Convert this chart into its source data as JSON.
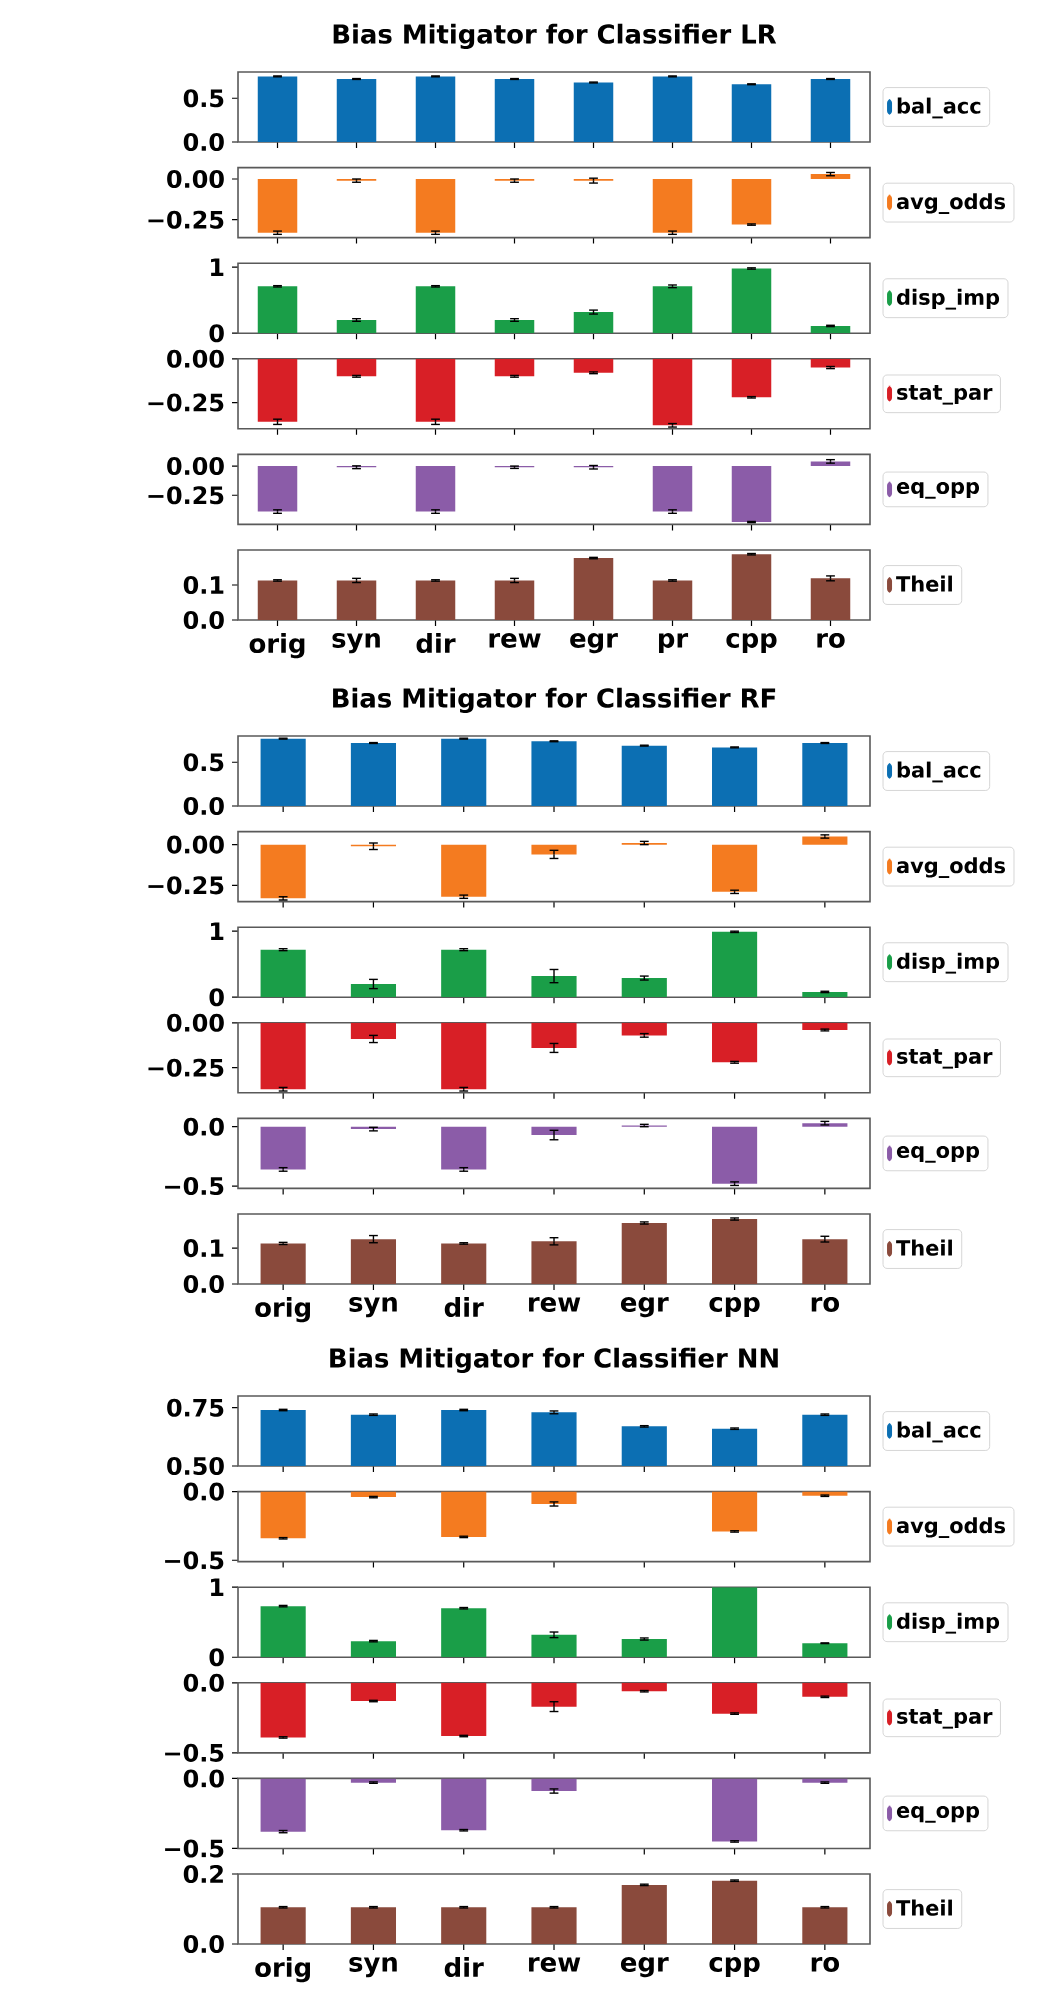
{
  "chart_data": [
    {
      "type": "bar",
      "title": "Bias Mitigator for Classifier LR",
      "categories": [
        null,
        null,
        null,
        null,
        null,
        null,
        null,
        null
      ],
      "series": [
        {
          "name": "bal_acc",
          "color": "#0c6fb3",
          "values": [
            0.75,
            0.72,
            0.75,
            0.72,
            0.68,
            0.75,
            0.66,
            0.72
          ],
          "errors": [
            0.005,
            0.005,
            0.005,
            0.005,
            0.005,
            0.005,
            0.005,
            0.005
          ]
        }
      ],
      "ylim": [
        0,
        0.8
      ],
      "yticks": [
        {
          "value": 0,
          "label": "0.0"
        },
        0.5
      ],
      "legend": "right",
      "tick_labels": "y"
    },
    {
      "type": "bar",
      "categories": [
        null,
        null,
        null,
        null,
        null,
        null,
        null,
        null
      ],
      "series": [
        {
          "name": "avg_odds",
          "color": "#f47b20",
          "values": [
            -0.33,
            -0.01,
            -0.33,
            -0.01,
            -0.01,
            -0.33,
            -0.28,
            0.03
          ],
          "errors": [
            0.01,
            0.01,
            0.01,
            0.01,
            0.015,
            0.01,
            0.004,
            0.01
          ]
        }
      ],
      "ylim": [
        -0.36,
        0.07
      ],
      "yticks": [
        {
          "value": -0.25,
          "label": "−0.25"
        },
        {
          "value": 0,
          "label": "0.00"
        }
      ],
      "legend": "right",
      "tick_labels": "y"
    },
    {
      "type": "bar",
      "categories": [
        null,
        null,
        null,
        null,
        null,
        null,
        null,
        null
      ],
      "series": [
        {
          "name": "disp_imp",
          "color": "#1a9e48",
          "values": [
            0.71,
            0.2,
            0.71,
            0.2,
            0.32,
            0.71,
            0.98,
            0.11
          ],
          "errors": [
            0.01,
            0.02,
            0.01,
            0.02,
            0.03,
            0.02,
            0.01,
            0.01
          ]
        }
      ],
      "ylim": [
        0,
        1.06
      ],
      "yticks": [
        0,
        1
      ],
      "legend": "right",
      "tick_labels": "y"
    },
    {
      "type": "bar",
      "categories": [
        null,
        null,
        null,
        null,
        null,
        null,
        null,
        null
      ],
      "series": [
        {
          "name": "stat_par",
          "color": "#d81f26",
          "values": [
            -0.36,
            -0.1,
            -0.36,
            -0.1,
            -0.08,
            -0.38,
            -0.22,
            -0.05
          ],
          "errors": [
            0.015,
            0.005,
            0.015,
            0.005,
            0.005,
            0.01,
            0.004,
            0.006
          ]
        }
      ],
      "ylim": [
        -0.4,
        0
      ],
      "yticks": [
        {
          "value": -0.25,
          "label": "−0.25"
        },
        {
          "value": 0,
          "label": "0.00"
        }
      ],
      "legend": "right",
      "tick_labels": "y"
    },
    {
      "type": "bar",
      "categories": [
        null,
        null,
        null,
        null,
        null,
        null,
        null,
        null
      ],
      "series": [
        {
          "name": "eq_opp",
          "color": "#8b5ca8",
          "values": [
            -0.39,
            -0.01,
            -0.39,
            -0.01,
            -0.01,
            -0.39,
            -0.48,
            0.04
          ],
          "errors": [
            0.015,
            0.012,
            0.015,
            0.01,
            0.015,
            0.015,
            0.005,
            0.015
          ]
        }
      ],
      "ylim": [
        -0.5,
        0.1
      ],
      "yticks": [
        {
          "value": -0.25,
          "label": "−0.25"
        },
        {
          "value": 0,
          "label": "0.00"
        }
      ],
      "legend": "right",
      "tick_labels": "y"
    },
    {
      "type": "bar",
      "categories": [
        "orig",
        "syn",
        "dir",
        "rew",
        "egr",
        "pr",
        "cpp",
        "ro"
      ],
      "series": [
        {
          "name": "Theil",
          "color": "#8a4a3c",
          "values": [
            0.113,
            0.113,
            0.113,
            0.113,
            0.177,
            0.113,
            0.188,
            0.119
          ],
          "errors": [
            0.002,
            0.006,
            0.002,
            0.006,
            0.002,
            0.002,
            0.002,
            0.007
          ]
        }
      ],
      "ylim": [
        0,
        0.2
      ],
      "yticks": [
        {
          "value": 0,
          "label": "0.0"
        },
        0.1
      ],
      "legend": "right"
    },
    {
      "type": "bar",
      "title": "Bias Mitigator for Classifier RF",
      "categories": [
        null,
        null,
        null,
        null,
        null,
        null,
        null
      ],
      "series": [
        {
          "name": "bal_acc",
          "color": "#0c6fb3",
          "values": [
            0.77,
            0.72,
            0.77,
            0.74,
            0.69,
            0.67,
            0.72
          ],
          "errors": [
            0.005,
            0.005,
            0.005,
            0.005,
            0.005,
            0.005,
            0.005
          ]
        }
      ],
      "ylim": [
        0,
        0.8
      ],
      "yticks": [
        {
          "value": 0,
          "label": "0.0"
        },
        0.5
      ],
      "legend": "right",
      "tick_labels": "y"
    },
    {
      "type": "bar",
      "categories": [
        null,
        null,
        null,
        null,
        null,
        null,
        null
      ],
      "series": [
        {
          "name": "avg_odds",
          "color": "#f47b20",
          "values": [
            -0.33,
            -0.01,
            -0.32,
            -0.06,
            0.01,
            -0.29,
            0.05
          ],
          "errors": [
            0.01,
            0.02,
            0.01,
            0.025,
            0.01,
            0.01,
            0.01
          ]
        }
      ],
      "ylim": [
        -0.35,
        0.08
      ],
      "yticks": [
        {
          "value": -0.25,
          "label": "−0.25"
        },
        {
          "value": 0,
          "label": "0.00"
        }
      ],
      "legend": "right",
      "tick_labels": "y"
    },
    {
      "type": "bar",
      "categories": [
        null,
        null,
        null,
        null,
        null,
        null,
        null
      ],
      "series": [
        {
          "name": "disp_imp",
          "color": "#1a9e48",
          "values": [
            0.72,
            0.2,
            0.72,
            0.32,
            0.29,
            0.99,
            0.08
          ],
          "errors": [
            0.015,
            0.07,
            0.015,
            0.1,
            0.03,
            0.01,
            0.01
          ]
        }
      ],
      "ylim": [
        0,
        1.06
      ],
      "yticks": [
        0,
        1
      ],
      "legend": "right",
      "tick_labels": "y"
    },
    {
      "type": "bar",
      "categories": [
        null,
        null,
        null,
        null,
        null,
        null,
        null
      ],
      "series": [
        {
          "name": "stat_par",
          "color": "#d81f26",
          "values": [
            -0.37,
            -0.09,
            -0.37,
            -0.14,
            -0.07,
            -0.22,
            -0.04
          ],
          "errors": [
            0.01,
            0.02,
            0.01,
            0.025,
            0.01,
            0.005,
            0.005
          ]
        }
      ],
      "ylim": [
        -0.39,
        0
      ],
      "yticks": [
        {
          "value": -0.25,
          "label": "−0.25"
        },
        {
          "value": 0,
          "label": "0.00"
        }
      ],
      "legend": "right",
      "tick_labels": "y"
    },
    {
      "type": "bar",
      "categories": [
        null,
        null,
        null,
        null,
        null,
        null,
        null
      ],
      "series": [
        {
          "name": "eq_opp",
          "color": "#8b5ca8",
          "values": [
            -0.36,
            -0.02,
            -0.36,
            -0.07,
            0.01,
            -0.48,
            0.03
          ],
          "errors": [
            0.015,
            0.015,
            0.015,
            0.04,
            0.01,
            0.015,
            0.015
          ]
        }
      ],
      "ylim": [
        -0.52,
        0.07
      ],
      "yticks": [
        {
          "value": -0.5,
          "label": "−0.5"
        },
        {
          "value": 0,
          "label": "0.0"
        }
      ],
      "legend": "right",
      "tick_labels": "y"
    },
    {
      "type": "bar",
      "categories": [
        "orig",
        "syn",
        "dir",
        "rew",
        "egr",
        "cpp",
        "ro"
      ],
      "series": [
        {
          "name": "Theil",
          "color": "#8a4a3c",
          "values": [
            0.113,
            0.125,
            0.113,
            0.119,
            0.17,
            0.181,
            0.125
          ],
          "errors": [
            0.003,
            0.01,
            0.002,
            0.01,
            0.003,
            0.003,
            0.008
          ]
        }
      ],
      "ylim": [
        0,
        0.195
      ],
      "yticks": [
        {
          "value": 0,
          "label": "0.0"
        },
        0.1
      ],
      "legend": "right"
    },
    {
      "type": "bar",
      "title": "Bias Mitigator for Classifier NN",
      "categories": [
        null,
        null,
        null,
        null,
        null,
        null,
        null
      ],
      "series": [
        {
          "name": "bal_acc",
          "color": "#0c6fb3",
          "values": [
            0.74,
            0.72,
            0.74,
            0.73,
            0.67,
            0.66,
            0.72
          ],
          "errors": [
            0.003,
            0.003,
            0.003,
            0.006,
            0.003,
            0.003,
            0.003
          ]
        }
      ],
      "ylim": [
        0.5,
        0.8
      ],
      "yticks": [
        {
          "value": 0.5,
          "label": "0.50"
        },
        0.75
      ],
      "legend": "right",
      "tick_labels": "y"
    },
    {
      "type": "bar",
      "categories": [
        null,
        null,
        null,
        null,
        null,
        null,
        null
      ],
      "series": [
        {
          "name": "avg_odds",
          "color": "#f47b20",
          "values": [
            -0.34,
            -0.04,
            -0.33,
            -0.09,
            0,
            -0.29,
            -0.03
          ],
          "errors": [
            0.005,
            0.005,
            0.005,
            0.015,
            null,
            0.005,
            0.005
          ]
        }
      ],
      "ylim": [
        -0.51,
        0
      ],
      "yticks": [
        {
          "value": -0.5,
          "label": "−0.5"
        },
        {
          "value": 0,
          "label": "0.0"
        }
      ],
      "legend": "right",
      "tick_labels": "y"
    },
    {
      "type": "bar",
      "categories": [
        null,
        null,
        null,
        null,
        null,
        null,
        null
      ],
      "series": [
        {
          "name": "disp_imp",
          "color": "#1a9e48",
          "values": [
            0.73,
            0.23,
            0.7,
            0.32,
            0.26,
            1.0,
            0.2
          ],
          "errors": [
            0.01,
            0.01,
            0.01,
            0.04,
            0.015,
            null,
            0.005
          ]
        }
      ],
      "ylim": [
        0,
        1
      ],
      "yticks": [
        0,
        1
      ],
      "legend": "right",
      "tick_labels": "y"
    },
    {
      "type": "bar",
      "categories": [
        null,
        null,
        null,
        null,
        null,
        null,
        null
      ],
      "series": [
        {
          "name": "stat_par",
          "color": "#d81f26",
          "values": [
            -0.39,
            -0.13,
            -0.38,
            -0.17,
            -0.06,
            -0.22,
            -0.1
          ],
          "errors": [
            0.005,
            0.005,
            0.005,
            0.035,
            0.005,
            0.005,
            0.005
          ]
        }
      ],
      "ylim": [
        -0.5,
        0
      ],
      "yticks": [
        {
          "value": -0.5,
          "label": "−0.5"
        },
        {
          "value": 0,
          "label": "0.0"
        }
      ],
      "legend": "right",
      "tick_labels": "y"
    },
    {
      "type": "bar",
      "categories": [
        null,
        null,
        null,
        null,
        null,
        null,
        null
      ],
      "series": [
        {
          "name": "eq_opp",
          "color": "#8b5ca8",
          "values": [
            -0.38,
            -0.03,
            -0.37,
            -0.09,
            0,
            -0.45,
            -0.03
          ],
          "errors": [
            0.008,
            0.005,
            0.005,
            0.015,
            null,
            0.005,
            0.005
          ]
        }
      ],
      "ylim": [
        -0.5,
        0
      ],
      "yticks": [
        {
          "value": -0.5,
          "label": "−0.5"
        },
        {
          "value": 0,
          "label": "0.0"
        }
      ],
      "legend": "right",
      "tick_labels": "y"
    },
    {
      "type": "bar",
      "categories": [
        "orig",
        "syn",
        "dir",
        "rew",
        "egr",
        "cpp",
        "ro"
      ],
      "series": [
        {
          "name": "Theil",
          "color": "#8a4a3c",
          "values": [
            0.105,
            0.105,
            0.105,
            0.105,
            0.169,
            0.181,
            0.105
          ],
          "errors": [
            0.002,
            0.002,
            0.002,
            0.002,
            0.002,
            0.002,
            0.002
          ]
        }
      ],
      "ylim": [
        0,
        0.2
      ],
      "yticks": [
        {
          "value": 0,
          "label": "0.0"
        },
        0.2
      ],
      "legend": "right"
    }
  ]
}
